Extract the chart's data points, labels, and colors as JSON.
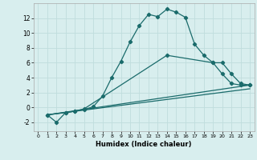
{
  "xlabel": "Humidex (Indice chaleur)",
  "bg_color": "#d8eeee",
  "line_color": "#1a6b6b",
  "grid_color": "#c0dddd",
  "xlim": [
    -0.5,
    23.5
  ],
  "ylim": [
    -3.2,
    14.0
  ],
  "yticks": [
    -2,
    0,
    2,
    4,
    6,
    8,
    10,
    12
  ],
  "xticks": [
    0,
    1,
    2,
    3,
    4,
    5,
    6,
    7,
    8,
    9,
    10,
    11,
    12,
    13,
    14,
    15,
    16,
    17,
    18,
    19,
    20,
    21,
    22,
    23
  ],
  "line1_x": [
    1,
    2,
    3,
    4,
    5,
    6,
    7,
    8,
    9,
    10,
    11,
    12,
    13,
    14,
    15,
    16,
    17,
    18,
    19,
    20,
    21,
    22,
    23
  ],
  "line1_y": [
    -1.0,
    -2.0,
    -0.7,
    -0.5,
    -0.3,
    0.1,
    1.5,
    4.0,
    6.2,
    8.8,
    11.0,
    12.5,
    12.2,
    13.2,
    12.8,
    12.1,
    8.5,
    7.0,
    6.0,
    4.5,
    3.2,
    3.0,
    3.0
  ],
  "line2_x": [
    1,
    3,
    4,
    5,
    14,
    19,
    20,
    21,
    22,
    23
  ],
  "line2_y": [
    -1.0,
    -0.7,
    -0.5,
    -0.2,
    7.0,
    6.0,
    6.0,
    4.5,
    3.2,
    3.0
  ],
  "line3_x": [
    1,
    23
  ],
  "line3_y": [
    -1.0,
    2.5
  ],
  "line4_x": [
    1,
    23
  ],
  "line4_y": [
    -1.0,
    3.0
  ]
}
